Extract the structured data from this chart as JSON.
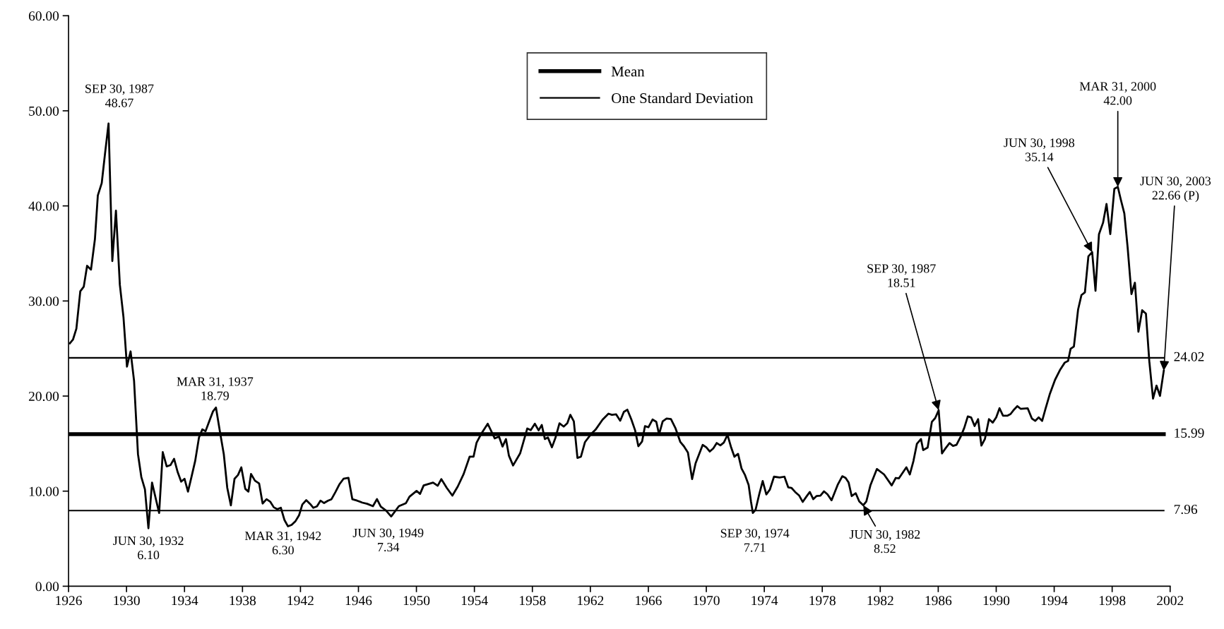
{
  "chart_data": {
    "type": "line",
    "xlim": [
      1926,
      2002
    ],
    "xticks": [
      1926,
      1930,
      1934,
      1938,
      1942,
      1946,
      1950,
      1954,
      1958,
      1962,
      1966,
      1970,
      1974,
      1978,
      1982,
      1986,
      1990,
      1994,
      1998,
      2002
    ],
    "ylim": [
      0,
      60
    ],
    "yticks": [
      {
        "value": 0,
        "label": "0.00"
      },
      {
        "value": 10,
        "label": "10.00"
      },
      {
        "value": 20,
        "label": "20.00"
      },
      {
        "value": 30,
        "label": "30.00"
      },
      {
        "value": 40,
        "label": "40.00"
      },
      {
        "value": 50,
        "label": "50.00"
      },
      {
        "value": 60,
        "label": "60.00"
      }
    ],
    "legend": "top",
    "marker": "none",
    "line_style": "solid",
    "series": [
      {
        "color": "#000000",
        "x": [
          1926.09,
          1926.31,
          1926.54,
          1926.81,
          1927.05,
          1927.28,
          1927.55,
          1927.82,
          1928.02,
          1928.29,
          1928.51,
          1928.76,
          1929.02,
          1929.27,
          1929.54,
          1929.79,
          1930.03,
          1930.28,
          1930.52,
          1930.79,
          1931.02,
          1931.27,
          1931.51,
          1931.76,
          1932.25,
          1932.5,
          1932.77,
          1933.04,
          1933.28,
          1933.53,
          1933.77,
          1934.0,
          1934.24,
          1934.49,
          1934.74,
          1935.0,
          1935.23,
          1935.45,
          1935.72,
          1935.97,
          1936.17,
          1936.44,
          1936.71,
          1936.95,
          1937.2,
          1937.45,
          1937.69,
          1937.92,
          1938.19,
          1938.41,
          1938.59,
          1938.86,
          1939.15,
          1939.39,
          1939.66,
          1939.91,
          1940.16,
          1940.4,
          1940.65,
          1940.9,
          1941.14,
          1941.39,
          1941.66,
          1941.9,
          1942.13,
          1942.4,
          1942.67,
          1942.89,
          1943.14,
          1943.38,
          1943.63,
          1943.9,
          1944.14,
          1944.41,
          1944.68,
          1944.97,
          1945.31,
          1945.58,
          1945.91,
          1946.27,
          1946.6,
          1947.0,
          1947.28,
          1947.54,
          1947.9,
          1948.26,
          1948.79,
          1949.28,
          1949.52,
          1950.01,
          1950.25,
          1950.5,
          1951.15,
          1951.47,
          1951.72,
          1952.09,
          1952.48,
          1952.85,
          1953.26,
          1953.67,
          1953.94,
          1954.15,
          1954.45,
          1954.92,
          1955.4,
          1955.7,
          1955.94,
          1956.18,
          1956.38,
          1956.67,
          1957.16,
          1957.65,
          1957.89,
          1958.17,
          1958.43,
          1958.65,
          1958.86,
          1959.07,
          1959.35,
          1959.59,
          1959.87,
          1960.16,
          1960.41,
          1960.62,
          1960.86,
          1961.11,
          1961.35,
          1961.63,
          1962.03,
          1962.36,
          1962.84,
          1963.25,
          1963.49,
          1963.78,
          1964.06,
          1964.31,
          1964.55,
          1964.83,
          1965.09,
          1965.31,
          1965.57,
          1965.77,
          1966.01,
          1966.29,
          1966.55,
          1966.74,
          1966.99,
          1967.26,
          1967.56,
          1967.88,
          1968.21,
          1968.45,
          1968.73,
          1969.02,
          1969.26,
          1969.75,
          1970.0,
          1970.24,
          1970.48,
          1970.72,
          1970.97,
          1971.21,
          1971.46,
          1971.7,
          1971.94,
          1972.19,
          1972.43,
          1972.67,
          1972.92,
          1973.08,
          1973.21,
          1973.4,
          1973.65,
          1973.89,
          1974.14,
          1974.38,
          1974.67,
          1975.06,
          1975.39,
          1975.65,
          1975.87,
          1976.13,
          1976.41,
          1976.65,
          1976.9,
          1977.14,
          1977.38,
          1977.6,
          1977.87,
          1978.12,
          1978.36,
          1978.64,
          1979.06,
          1979.38,
          1979.61,
          1979.82,
          1980.03,
          1980.31,
          1980.55,
          1980.83,
          1981.04,
          1981.33,
          1981.77,
          1982.26,
          1982.79,
          1983.07,
          1983.28,
          1983.8,
          1984.04,
          1984.29,
          1984.53,
          1984.81,
          1984.96,
          1985.27,
          1985.56,
          1985.79,
          1986.03,
          1986.26,
          1986.5,
          1986.78,
          1987.02,
          1987.26,
          1987.56,
          1987.8,
          1988.04,
          1988.27,
          1988.51,
          1988.75,
          1988.98,
          1989.22,
          1989.5,
          1989.76,
          1990.0,
          1990.23,
          1990.47,
          1990.76,
          1990.99,
          1991.23,
          1991.46,
          1991.7,
          1992.17,
          1992.46,
          1992.69,
          1992.93,
          1993.17,
          1993.4,
          1993.71,
          1994.06,
          1994.42,
          1994.73,
          1994.96,
          1995.13,
          1995.36,
          1995.65,
          1995.88,
          1996.12,
          1996.36,
          1996.62,
          1996.85,
          1997.09,
          1997.37,
          1997.61,
          1997.87,
          1998.15,
          1998.39,
          1998.6,
          1998.84,
          1999.07,
          1999.33,
          1999.57,
          1999.81,
          2000.07,
          2000.33,
          2000.56,
          2000.82,
          2001.06,
          2001.3,
          2001.56
        ],
        "values": [
          25.55,
          25.96,
          27.09,
          31.02,
          31.5,
          33.7,
          33.3,
          36.5,
          41.1,
          42.4,
          45.4,
          48.67,
          34.2,
          39.5,
          31.7,
          28.3,
          23.1,
          24.7,
          21.6,
          13.9,
          11.5,
          10.2,
          6.1,
          10.9,
          7.7,
          14.1,
          12.6,
          12.75,
          13.4,
          12.0,
          11.0,
          11.3,
          9.95,
          11.55,
          13.2,
          15.65,
          16.5,
          16.3,
          17.4,
          18.4,
          18.79,
          16.3,
          13.9,
          10.35,
          8.5,
          11.3,
          11.7,
          12.5,
          10.25,
          9.95,
          11.8,
          11.1,
          10.8,
          8.7,
          9.15,
          8.9,
          8.3,
          8.1,
          8.25,
          6.95,
          6.3,
          6.45,
          6.85,
          7.45,
          8.6,
          9.05,
          8.65,
          8.25,
          8.4,
          9.0,
          8.75,
          9.0,
          9.15,
          9.9,
          10.7,
          11.3,
          11.4,
          9.15,
          9.0,
          8.79,
          8.67,
          8.42,
          9.16,
          8.37,
          7.97,
          7.34,
          8.42,
          8.74,
          9.41,
          10.03,
          9.71,
          10.6,
          10.9,
          10.57,
          11.27,
          10.35,
          9.53,
          10.48,
          11.81,
          13.62,
          13.62,
          15.1,
          15.97,
          17.09,
          15.55,
          15.73,
          14.69,
          15.48,
          13.74,
          12.7,
          13.99,
          16.59,
          16.42,
          17.09,
          16.39,
          16.96,
          15.48,
          15.65,
          14.61,
          15.6,
          17.14,
          16.79,
          17.14,
          18.03,
          17.34,
          13.5,
          13.62,
          15.16,
          15.97,
          16.47,
          17.51,
          18.15,
          18.03,
          18.08,
          17.41,
          18.33,
          18.57,
          17.53,
          16.39,
          14.73,
          15.23,
          16.84,
          16.72,
          17.53,
          17.29,
          15.97,
          17.34,
          17.63,
          17.58,
          16.59,
          15.16,
          14.73,
          14.07,
          11.27,
          12.93,
          14.86,
          14.61,
          14.17,
          14.49,
          15.06,
          14.81,
          15.11,
          15.92,
          14.66,
          13.62,
          13.92,
          12.38,
          11.69,
          10.65,
          8.92,
          7.71,
          8.05,
          9.66,
          11.07,
          9.66,
          10.15,
          11.52,
          11.44,
          11.52,
          10.4,
          10.35,
          9.91,
          9.53,
          8.87,
          9.41,
          9.91,
          9.16,
          9.48,
          9.53,
          9.98,
          9.66,
          9.04,
          10.65,
          11.57,
          11.39,
          10.9,
          9.48,
          9.78,
          8.92,
          8.52,
          8.92,
          10.65,
          12.33,
          11.76,
          10.6,
          11.39,
          11.34,
          12.51,
          11.76,
          13.17,
          14.98,
          15.48,
          14.32,
          14.58,
          17.28,
          17.68,
          18.51,
          13.97,
          14.5,
          15.05,
          14.76,
          14.87,
          15.77,
          16.67,
          17.86,
          17.75,
          16.85,
          17.57,
          14.79,
          15.48,
          17.57,
          17.21,
          17.75,
          18.72,
          17.93,
          17.93,
          18.11,
          18.58,
          18.94,
          18.65,
          18.72,
          17.64,
          17.39,
          17.75,
          17.39,
          18.65,
          20.27,
          21.71,
          22.79,
          23.52,
          23.7,
          24.96,
          25.21,
          29.1,
          30.62,
          30.91,
          34.69,
          35.14,
          31.08,
          37.03,
          38.22,
          40.2,
          37.03,
          41.79,
          42.0,
          40.64,
          39.2,
          35.59,
          30.73,
          31.92,
          26.76,
          29.03,
          28.67,
          23.7,
          19.73,
          21.1,
          20.02,
          22.66
        ]
      },
      {
        "name": "Mean",
        "color": "#000000",
        "x": [
          1926,
          2001.56
        ],
        "values": [
          15.99,
          15.99
        ]
      },
      {
        "name": "One Standard Deviation",
        "color": "#000000",
        "x": [
          1926,
          2001.56
        ],
        "values": [
          24.02,
          24.02
        ]
      },
      {
        "color": "#000000",
        "x": [
          1926,
          2001.56
        ],
        "values": [
          7.96,
          7.96
        ]
      }
    ],
    "annotations": [
      {
        "text": "SEP 30, 1987\n48.67",
        "x": 1928.76,
        "y": 48.67
      },
      {
        "text": "JUN 30, 1932\n6.10",
        "x": 1931.51,
        "y": 6.1
      },
      {
        "text": "MAR 31, 1937\n18.79",
        "x": 1936.17,
        "y": 18.79
      },
      {
        "text": "MAR 31, 1942\n6.30",
        "x": 1941.14,
        "y": 6.3
      },
      {
        "text": "JUN 30, 1949\n7.34",
        "x": 1948.26,
        "y": 7.34
      },
      {
        "text": "SEP 30, 1974\n7.71",
        "x": 1973.21,
        "y": 7.71
      },
      {
        "text": "JUN 30, 1982\n8.52",
        "x": 1980.83,
        "y": 8.52
      },
      {
        "text": "SEP 30, 1987\n18.51",
        "x": 1986.03,
        "y": 18.51
      },
      {
        "text": "JUN 30, 1998\n35.14",
        "x": 1996.62,
        "y": 35.14
      },
      {
        "text": "MAR 31, 2000\n42.00",
        "x": 1998.39,
        "y": 42.0
      },
      {
        "text": "JUN 30, 2003\n22.66 (P)",
        "x": 2001.56,
        "y": 22.66
      },
      {
        "text": "24.02",
        "x": 2001.56,
        "y": 24.02
      },
      {
        "text": "15.99",
        "x": 2001.56,
        "y": 15.99
      },
      {
        "text": "7.96",
        "x": 2001.56,
        "y": 7.96
      }
    ]
  }
}
